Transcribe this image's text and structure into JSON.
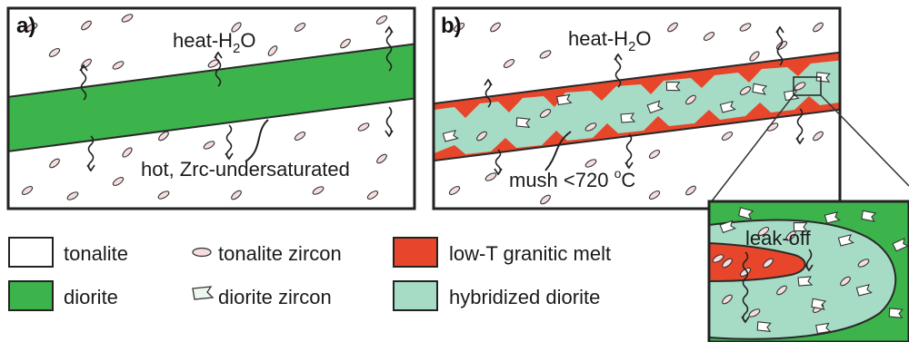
{
  "panels": {
    "a": {
      "letter": "a)",
      "heat": "heat-H",
      "heat_sub": "2",
      "heat_end": "O",
      "note": "hot, Zrc-undersaturated"
    },
    "b": {
      "letter": "b)",
      "heat": "heat-H",
      "heat_sub": "2",
      "heat_end": "O",
      "mush": "mush <720 ",
      "mush_deg": "o",
      "mush_end": "C"
    }
  },
  "inset": {
    "label": "leak-off"
  },
  "legend": [
    {
      "label": "tonalite",
      "swatch": "tonalite"
    },
    {
      "label": "tonalite zircon",
      "swatch": "tonalite-zircon"
    },
    {
      "label": "low-T granitic melt",
      "swatch": "melt"
    },
    {
      "label": "diorite",
      "swatch": "diorite"
    },
    {
      "label": "diorite zircon",
      "swatch": "diorite-zircon"
    },
    {
      "label": "hybridized diorite",
      "swatch": "hybrid"
    }
  ],
  "colors": {
    "diorite": "#3cb44b",
    "hybrid": "#a6dcc6",
    "melt": "#e8462a",
    "zircon_fill": "#f6dede",
    "outline": "#2a2a2a"
  }
}
